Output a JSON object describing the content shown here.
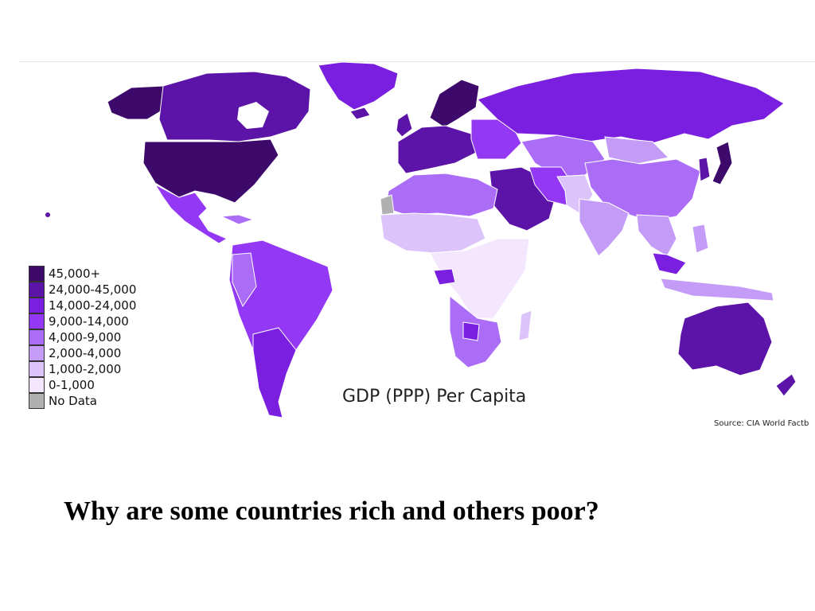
{
  "map": {
    "title": "GDP (PPP) Per Capita",
    "source": "Source: CIA World Factb",
    "legend": [
      {
        "label": "45,000+",
        "color": "#3d0a6b"
      },
      {
        "label": "24,000-45,000",
        "color": "#5c13a8"
      },
      {
        "label": "14,000-24,000",
        "color": "#7a1fe0"
      },
      {
        "label": "9,000-14,000",
        "color": "#9338f5"
      },
      {
        "label": "4,000-9,000",
        "color": "#ab6cf7"
      },
      {
        "label": "2,000-4,000",
        "color": "#c49cf7"
      },
      {
        "label": "1,000-2,000",
        "color": "#dcc4fa"
      },
      {
        "label": "0-1,000",
        "color": "#f3e6fd"
      },
      {
        "label": "No Data",
        "color": "#b0b0b0"
      }
    ]
  },
  "slide": {
    "question": "Why are some countries rich and others poor?"
  }
}
